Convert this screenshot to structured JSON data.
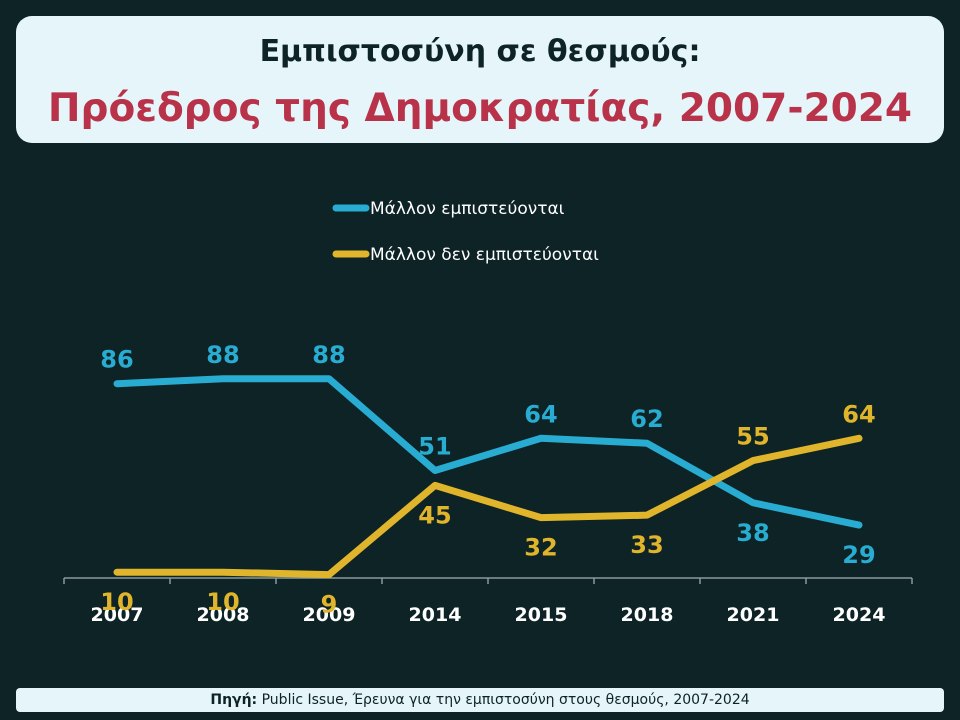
{
  "header": {
    "title_line1": "Εμπιστοσύνη σε θεσμούς:",
    "title_line2": "Πρόεδρος της Δημοκρατίας, 2007-2024"
  },
  "source": {
    "label": "Πηγή:",
    "text": "Public Issue, Έρευνα για την εμπιστοσύνη στους θεσμούς, 2007-2024"
  },
  "colors": {
    "trust": "#29acd1",
    "distrust": "#e0b52c",
    "axis": "#8a9a9c",
    "tick_label": "#ffffff",
    "legend_text": "#ffffff"
  },
  "chart_data": {
    "type": "line",
    "title": "Εμπιστοσύνη σε θεσμούς: Πρόεδρος της Δημοκρατίας, 2007-2024",
    "categories": [
      "2007",
      "2008",
      "2009",
      "2014",
      "2015",
      "2018",
      "2021",
      "2024"
    ],
    "series": [
      {
        "name": "Μάλλον εμπιστεύονται",
        "values": [
          86,
          88,
          88,
          51,
          64,
          62,
          38,
          29
        ],
        "color": "#29acd1"
      },
      {
        "name": "Μάλλον δεν εμπιστεύονται",
        "values": [
          10,
          10,
          9,
          45,
          32,
          33,
          55,
          64
        ],
        "color": "#e0b52c"
      }
    ],
    "ylim": [
      0,
      100
    ],
    "grid": false,
    "legend": "top-center",
    "xlabel": "",
    "ylabel": ""
  }
}
